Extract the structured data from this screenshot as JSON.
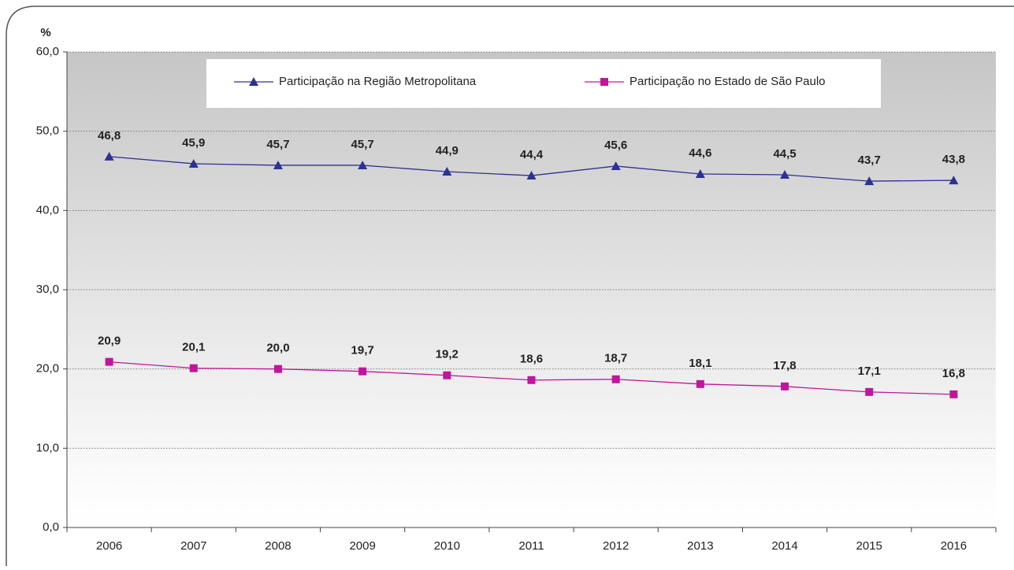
{
  "chart_data": {
    "type": "line",
    "y_label": "%",
    "categories": [
      "2006",
      "2007",
      "2008",
      "2009",
      "2010",
      "2011",
      "2012",
      "2013",
      "2014",
      "2015",
      "2016"
    ],
    "series": [
      {
        "name": "Participação na Região Metropolitana",
        "color": "#2e3192",
        "marker": "triangle",
        "values": [
          46.8,
          45.9,
          45.7,
          45.7,
          44.9,
          44.4,
          45.6,
          44.6,
          44.5,
          43.7,
          43.8
        ],
        "value_labels": [
          "46,8",
          "45,9",
          "45,7",
          "45,7",
          "44,9",
          "44,4",
          "45,6",
          "44,6",
          "44,5",
          "43,7",
          "43,8"
        ]
      },
      {
        "name": "Participação no Estado de São Paulo",
        "color": "#c0169b",
        "marker": "square",
        "values": [
          20.9,
          20.1,
          20.0,
          19.7,
          19.2,
          18.6,
          18.7,
          18.1,
          17.8,
          17.1,
          16.8
        ],
        "value_labels": [
          "20,9",
          "20,1",
          "20,0",
          "19,7",
          "19,2",
          "18,6",
          "18,7",
          "18,1",
          "17,8",
          "17,1",
          "16,8"
        ]
      }
    ],
    "ylim": [
      0,
      60
    ],
    "yticks": [
      {
        "value": 0,
        "label": "0,0"
      },
      {
        "value": 10,
        "label": "10,0"
      },
      {
        "value": 20,
        "label": "20,0"
      },
      {
        "value": 30,
        "label": "30,0"
      },
      {
        "value": 40,
        "label": "40,0"
      },
      {
        "value": 50,
        "label": "50,0"
      },
      {
        "value": 60,
        "label": "60,0"
      }
    ],
    "grid": true
  }
}
